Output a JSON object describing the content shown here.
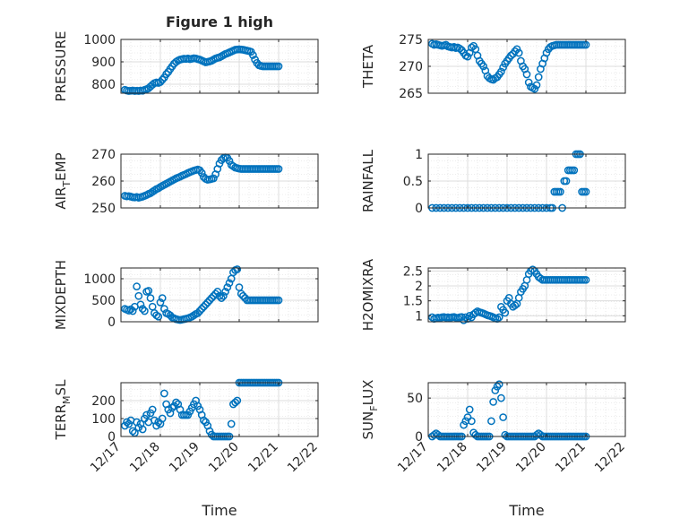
{
  "figure": {
    "title": "Figure 1 high",
    "x_axis_label": "Time",
    "x_tick_labels": [
      "12/17",
      "12/18",
      "12/19",
      "12/20",
      "12/21",
      "12/22"
    ],
    "marker_color": "#0072BD"
  },
  "chart_data": [
    {
      "type": "scatter",
      "ylabel": "PRESSURE",
      "ylim": [
        760,
        1000
      ],
      "yticks": [
        800,
        900,
        1000
      ],
      "ytick_labels": [
        "800",
        "900",
        "1000"
      ],
      "x": [
        17.1,
        17.15,
        17.2,
        17.25,
        17.3,
        17.35,
        17.4,
        17.45,
        17.5,
        17.55,
        17.6,
        17.65,
        17.7,
        17.75,
        17.8,
        17.85,
        17.9,
        17.95,
        18.0,
        18.05,
        18.1,
        18.15,
        18.2,
        18.25,
        18.3,
        18.35,
        18.4,
        18.45,
        18.5,
        18.55,
        18.6,
        18.65,
        18.7,
        18.75,
        18.8,
        18.85,
        18.9,
        18.95,
        19.0,
        19.05,
        19.1,
        19.15,
        19.2,
        19.25,
        19.3,
        19.35,
        19.4,
        19.45,
        19.5,
        19.55,
        19.6,
        19.65,
        19.7,
        19.75,
        19.8,
        19.85,
        19.9,
        19.95,
        20.0,
        20.05,
        20.1,
        20.15,
        20.2,
        20.25,
        20.3,
        20.35,
        20.4,
        20.45,
        20.5,
        20.55,
        20.6,
        20.65,
        20.7,
        20.75,
        20.8,
        20.85,
        20.9,
        20.95,
        21.0
      ],
      "y": [
        775,
        772,
        770,
        771,
        772,
        770,
        771,
        770,
        772,
        771,
        775,
        778,
        782,
        790,
        798,
        805,
        808,
        806,
        810,
        820,
        830,
        845,
        855,
        868,
        880,
        892,
        900,
        906,
        910,
        912,
        914,
        913,
        915,
        912,
        914,
        916,
        915,
        912,
        910,
        906,
        902,
        898,
        900,
        902,
        905,
        910,
        915,
        918,
        920,
        925,
        930,
        935,
        938,
        942,
        946,
        950,
        954,
        955,
        956,
        955,
        954,
        952,
        950,
        948,
        945,
        930,
        910,
        895,
        885,
        882,
        880,
        880,
        880,
        880,
        880,
        880,
        880,
        880,
        880
      ]
    },
    {
      "type": "scatter",
      "ylabel": "THETA",
      "ylim": [
        265,
        275
      ],
      "yticks": [
        265,
        270,
        275
      ],
      "ytick_labels": [
        "265",
        "270",
        "275"
      ],
      "x": [
        17.1,
        17.15,
        17.2,
        17.25,
        17.3,
        17.35,
        17.4,
        17.45,
        17.5,
        17.55,
        17.6,
        17.65,
        17.7,
        17.75,
        17.8,
        17.85,
        17.9,
        17.95,
        18.0,
        18.05,
        18.1,
        18.15,
        18.2,
        18.25,
        18.3,
        18.35,
        18.4,
        18.45,
        18.5,
        18.55,
        18.6,
        18.65,
        18.7,
        18.75,
        18.8,
        18.85,
        18.9,
        18.95,
        19.0,
        19.05,
        19.1,
        19.15,
        19.2,
        19.25,
        19.3,
        19.35,
        19.4,
        19.45,
        19.5,
        19.55,
        19.6,
        19.65,
        19.7,
        19.75,
        19.8,
        19.85,
        19.9,
        19.95,
        20.0,
        20.05,
        20.1,
        20.15,
        20.2,
        20.25,
        20.3,
        20.35,
        20.4,
        20.45,
        20.5,
        20.55,
        20.6,
        20.65,
        20.7,
        20.75,
        20.8,
        20.85,
        20.9,
        20.95,
        21.0
      ],
      "y": [
        274.2,
        274.0,
        274.1,
        274.0,
        273.9,
        273.8,
        273.9,
        274.0,
        273.7,
        273.6,
        273.5,
        273.6,
        273.4,
        273.5,
        273.3,
        273.0,
        272.5,
        272.0,
        271.8,
        272.5,
        273.5,
        273.8,
        273.2,
        272.0,
        271.0,
        270.5,
        270.0,
        269.2,
        268.2,
        267.8,
        267.6,
        267.5,
        267.8,
        268.0,
        268.5,
        269.0,
        269.8,
        270.5,
        271.0,
        271.5,
        272.0,
        272.3,
        272.8,
        273.2,
        272.5,
        271.0,
        270.0,
        269.5,
        268.5,
        267.0,
        266.2,
        266.0,
        265.8,
        266.5,
        268.0,
        269.5,
        270.5,
        271.5,
        272.5,
        273.2,
        273.6,
        273.8,
        273.9,
        274.0,
        274.0,
        274.0,
        274.0,
        274.0,
        274.0,
        274.0,
        274.0,
        274.0,
        274.0,
        274.0,
        274.0,
        274.0,
        274.0,
        274.0,
        274.0
      ]
    },
    {
      "type": "scatter",
      "ylabel": "AIR_TEMP",
      "ylim": [
        250,
        270
      ],
      "yticks": [
        250,
        260,
        270
      ],
      "ytick_labels": [
        "250",
        "260",
        "270"
      ],
      "x": [
        17.1,
        17.15,
        17.2,
        17.25,
        17.3,
        17.35,
        17.4,
        17.45,
        17.5,
        17.55,
        17.6,
        17.65,
        17.7,
        17.75,
        17.8,
        17.85,
        17.9,
        17.95,
        18.0,
        18.05,
        18.1,
        18.15,
        18.2,
        18.25,
        18.3,
        18.35,
        18.4,
        18.45,
        18.5,
        18.55,
        18.6,
        18.65,
        18.7,
        18.75,
        18.8,
        18.85,
        18.9,
        18.95,
        19.0,
        19.05,
        19.1,
        19.15,
        19.2,
        19.25,
        19.3,
        19.35,
        19.4,
        19.45,
        19.5,
        19.55,
        19.6,
        19.65,
        19.7,
        19.75,
        19.8,
        19.85,
        19.9,
        19.95,
        20.0,
        20.05,
        20.1,
        20.15,
        20.2,
        20.25,
        20.3,
        20.35,
        20.4,
        20.45,
        20.5,
        20.55,
        20.6,
        20.65,
        20.7,
        20.75,
        20.8,
        20.85,
        20.9,
        20.95,
        21.0
      ],
      "y": [
        254.5,
        254.3,
        254.4,
        254.2,
        254.0,
        253.9,
        254.1,
        253.8,
        254.0,
        254.2,
        254.5,
        254.8,
        255.2,
        255.5,
        256.0,
        256.5,
        257.0,
        257.3,
        257.8,
        258.2,
        258.6,
        259.0,
        259.4,
        259.8,
        260.2,
        260.6,
        261.0,
        261.3,
        261.6,
        262.0,
        262.3,
        262.6,
        263.0,
        263.3,
        263.6,
        263.9,
        264.1,
        264.3,
        264.0,
        263.0,
        261.5,
        260.8,
        260.5,
        260.6,
        260.8,
        261.0,
        262.5,
        264.5,
        266.5,
        267.8,
        268.5,
        268.8,
        268.6,
        267.5,
        266.0,
        265.5,
        265.0,
        264.8,
        264.6,
        264.5,
        264.5,
        264.5,
        264.5,
        264.5,
        264.5,
        264.5,
        264.5,
        264.5,
        264.5,
        264.5,
        264.5,
        264.5,
        264.5,
        264.5,
        264.5,
        264.5,
        264.5,
        264.5,
        264.5
      ]
    },
    {
      "type": "scatter",
      "ylabel": "RAINFALL",
      "ylim": [
        0,
        1
      ],
      "yticks": [
        0,
        0.5,
        1
      ],
      "ytick_labels": [
        "0",
        "0.5",
        "1"
      ],
      "x": [
        17.1,
        17.2,
        17.3,
        17.4,
        17.5,
        17.6,
        17.7,
        17.8,
        17.9,
        18.0,
        18.1,
        18.2,
        18.3,
        18.4,
        18.5,
        18.6,
        18.7,
        18.8,
        18.9,
        19.0,
        19.1,
        19.2,
        19.3,
        19.4,
        19.5,
        19.6,
        19.7,
        19.8,
        19.9,
        20.0,
        20.1,
        20.15,
        20.2,
        20.25,
        20.3,
        20.35,
        20.4,
        20.45,
        20.5,
        20.55,
        20.6,
        20.65,
        20.7,
        20.75,
        20.8,
        20.85,
        20.9,
        20.95,
        21.0
      ],
      "y": [
        0,
        0,
        0,
        0,
        0,
        0,
        0,
        0,
        0,
        0,
        0,
        0,
        0,
        0,
        0,
        0,
        0,
        0,
        0,
        0,
        0,
        0,
        0,
        0,
        0,
        0,
        0,
        0,
        0,
        0,
        0,
        0,
        0.3,
        0.3,
        0.3,
        0.3,
        0,
        0.5,
        0.5,
        0.7,
        0.7,
        0.7,
        0.7,
        1.0,
        1.0,
        1.0,
        0.3,
        0.3,
        0.3
      ]
    },
    {
      "type": "scatter",
      "ylabel": "MIXDEPTH",
      "ylim": [
        0,
        1250
      ],
      "yticks": [
        0,
        500,
        1000
      ],
      "ytick_labels": [
        "0",
        "500",
        "1000"
      ],
      "x": [
        17.1,
        17.15,
        17.2,
        17.25,
        17.3,
        17.35,
        17.4,
        17.45,
        17.5,
        17.55,
        17.6,
        17.65,
        17.7,
        17.75,
        17.8,
        17.85,
        17.9,
        17.95,
        18.0,
        18.05,
        18.1,
        18.15,
        18.2,
        18.25,
        18.3,
        18.35,
        18.4,
        18.45,
        18.5,
        18.55,
        18.6,
        18.65,
        18.7,
        18.75,
        18.8,
        18.85,
        18.9,
        18.95,
        19.0,
        19.05,
        19.1,
        19.15,
        19.2,
        19.25,
        19.3,
        19.35,
        19.4,
        19.45,
        19.5,
        19.55,
        19.6,
        19.65,
        19.7,
        19.75,
        19.8,
        19.85,
        19.9,
        19.95,
        20.0,
        20.05,
        20.1,
        20.15,
        20.2,
        20.25,
        20.3,
        20.35,
        20.4,
        20.45,
        20.5,
        20.55,
        20.6,
        20.65,
        20.7,
        20.75,
        20.8,
        20.85,
        20.9,
        20.95,
        21.0
      ],
      "y": [
        300,
        280,
        260,
        290,
        250,
        350,
        820,
        600,
        400,
        300,
        250,
        700,
        720,
        550,
        350,
        200,
        150,
        120,
        450,
        550,
        300,
        200,
        180,
        150,
        100,
        80,
        60,
        50,
        40,
        50,
        60,
        70,
        80,
        100,
        120,
        150,
        180,
        200,
        250,
        300,
        350,
        400,
        450,
        500,
        550,
        600,
        650,
        700,
        600,
        550,
        600,
        700,
        800,
        900,
        1000,
        1150,
        1200,
        1220,
        800,
        650,
        600,
        550,
        500,
        500,
        500,
        500,
        500,
        500,
        500,
        500,
        500,
        500,
        500,
        500,
        500,
        500,
        500,
        500,
        500
      ]
    },
    {
      "type": "scatter",
      "ylabel": "H2OMIXRA",
      "ylim": [
        0.8,
        2.6
      ],
      "yticks": [
        1,
        1.5,
        2,
        2.5
      ],
      "ytick_labels": [
        "1",
        "1.5",
        "2",
        "2.5"
      ],
      "x": [
        17.1,
        17.15,
        17.2,
        17.25,
        17.3,
        17.35,
        17.4,
        17.45,
        17.5,
        17.55,
        17.6,
        17.65,
        17.7,
        17.75,
        17.8,
        17.85,
        17.9,
        17.95,
        18.0,
        18.05,
        18.1,
        18.15,
        18.2,
        18.25,
        18.3,
        18.35,
        18.4,
        18.45,
        18.5,
        18.55,
        18.6,
        18.65,
        18.7,
        18.75,
        18.8,
        18.85,
        18.9,
        18.95,
        19.0,
        19.05,
        19.1,
        19.15,
        19.2,
        19.25,
        19.3,
        19.35,
        19.4,
        19.45,
        19.5,
        19.55,
        19.6,
        19.65,
        19.7,
        19.75,
        19.8,
        19.85,
        19.9,
        19.95,
        20.0,
        20.05,
        20.1,
        20.15,
        20.2,
        20.25,
        20.3,
        20.35,
        20.4,
        20.45,
        20.5,
        20.55,
        20.6,
        20.65,
        20.7,
        20.75,
        20.8,
        20.85,
        20.9,
        20.95,
        21.0
      ],
      "y": [
        0.95,
        0.9,
        0.92,
        0.94,
        0.93,
        0.95,
        0.96,
        0.94,
        0.95,
        0.93,
        0.95,
        0.96,
        0.94,
        0.92,
        0.95,
        0.96,
        0.85,
        0.95,
        0.9,
        1.0,
        0.95,
        1.05,
        1.1,
        1.15,
        1.12,
        1.1,
        1.08,
        1.05,
        1.02,
        1.0,
        0.98,
        0.95,
        0.92,
        0.9,
        0.95,
        1.3,
        1.2,
        1.1,
        1.5,
        1.6,
        1.4,
        1.3,
        1.35,
        1.4,
        1.6,
        1.8,
        1.9,
        2.0,
        2.2,
        2.4,
        2.5,
        2.55,
        2.5,
        2.4,
        2.3,
        2.25,
        2.2,
        2.2,
        2.2,
        2.2,
        2.2,
        2.2,
        2.2,
        2.2,
        2.2,
        2.2,
        2.2,
        2.2,
        2.2,
        2.2,
        2.2,
        2.2,
        2.2,
        2.2,
        2.2,
        2.2,
        2.2,
        2.2,
        2.2
      ]
    },
    {
      "type": "scatter",
      "ylabel": "TERR_MSL",
      "ylim": [
        0,
        300
      ],
      "yticks": [
        0,
        100,
        200
      ],
      "ytick_labels": [
        "0",
        "100",
        "200"
      ],
      "x": [
        17.1,
        17.15,
        17.2,
        17.25,
        17.3,
        17.35,
        17.4,
        17.45,
        17.5,
        17.55,
        17.6,
        17.65,
        17.7,
        17.75,
        17.8,
        17.85,
        17.9,
        17.95,
        18.0,
        18.05,
        18.1,
        18.15,
        18.2,
        18.25,
        18.3,
        18.35,
        18.4,
        18.45,
        18.5,
        18.55,
        18.6,
        18.65,
        18.7,
        18.75,
        18.8,
        18.85,
        18.9,
        18.95,
        19.0,
        19.05,
        19.1,
        19.15,
        19.2,
        19.25,
        19.3,
        19.35,
        19.4,
        19.45,
        19.5,
        19.55,
        19.6,
        19.65,
        19.7,
        19.75,
        19.8,
        19.85,
        19.9,
        19.95,
        20.0,
        20.05,
        20.1,
        20.15,
        20.2,
        20.25,
        20.3,
        20.35,
        20.4,
        20.45,
        20.5,
        20.55,
        20.6,
        20.65,
        20.7,
        20.75,
        20.8,
        20.85,
        20.9,
        20.95,
        21.0
      ],
      "y": [
        60,
        80,
        70,
        90,
        30,
        20,
        80,
        50,
        70,
        40,
        100,
        120,
        80,
        130,
        150,
        90,
        60,
        80,
        70,
        100,
        240,
        180,
        150,
        130,
        160,
        170,
        190,
        180,
        150,
        120,
        120,
        120,
        120,
        140,
        160,
        180,
        200,
        170,
        150,
        120,
        90,
        80,
        60,
        30,
        10,
        0,
        0,
        0,
        0,
        0,
        0,
        0,
        0,
        0,
        70,
        180,
        190,
        200,
        300,
        300,
        300,
        300,
        300,
        300,
        300,
        300,
        300,
        300,
        300,
        300,
        300,
        300,
        300,
        300,
        300,
        300,
        300,
        300,
        300
      ]
    },
    {
      "type": "scatter",
      "ylabel": "SUN_FLUX",
      "ylim": [
        0,
        70
      ],
      "yticks": [
        0,
        50
      ],
      "ytick_labels": [
        "0",
        "50"
      ],
      "x": [
        17.1,
        17.15,
        17.2,
        17.25,
        17.3,
        17.35,
        17.4,
        17.45,
        17.5,
        17.55,
        17.6,
        17.65,
        17.7,
        17.75,
        17.8,
        17.85,
        17.9,
        17.95,
        18.0,
        18.05,
        18.1,
        18.15,
        18.2,
        18.25,
        18.3,
        18.35,
        18.4,
        18.45,
        18.5,
        18.55,
        18.6,
        18.65,
        18.7,
        18.75,
        18.8,
        18.85,
        18.9,
        18.95,
        19.0,
        19.05,
        19.1,
        19.15,
        19.2,
        19.25,
        19.3,
        19.35,
        19.4,
        19.45,
        19.5,
        19.55,
        19.6,
        19.65,
        19.7,
        19.75,
        19.8,
        19.85,
        19.9,
        19.95,
        20.0,
        20.05,
        20.1,
        20.15,
        20.2,
        20.25,
        20.3,
        20.35,
        20.4,
        20.45,
        20.5,
        20.55,
        20.6,
        20.65,
        20.7,
        20.75,
        20.8,
        20.85,
        20.9,
        20.95,
        21.0
      ],
      "y": [
        0,
        2,
        4,
        2,
        0,
        0,
        0,
        0,
        0,
        0,
        0,
        0,
        0,
        0,
        0,
        0,
        15,
        20,
        25,
        35,
        20,
        5,
        2,
        0,
        0,
        0,
        0,
        0,
        0,
        0,
        20,
        45,
        60,
        65,
        68,
        50,
        25,
        2,
        0,
        0,
        0,
        0,
        0,
        0,
        0,
        0,
        0,
        0,
        0,
        0,
        0,
        0,
        0,
        2,
        4,
        2,
        0,
        0,
        0,
        0,
        0,
        0,
        0,
        0,
        0,
        0,
        0,
        0,
        0,
        0,
        0,
        0,
        0,
        0,
        0,
        0,
        0,
        0,
        0
      ]
    }
  ]
}
